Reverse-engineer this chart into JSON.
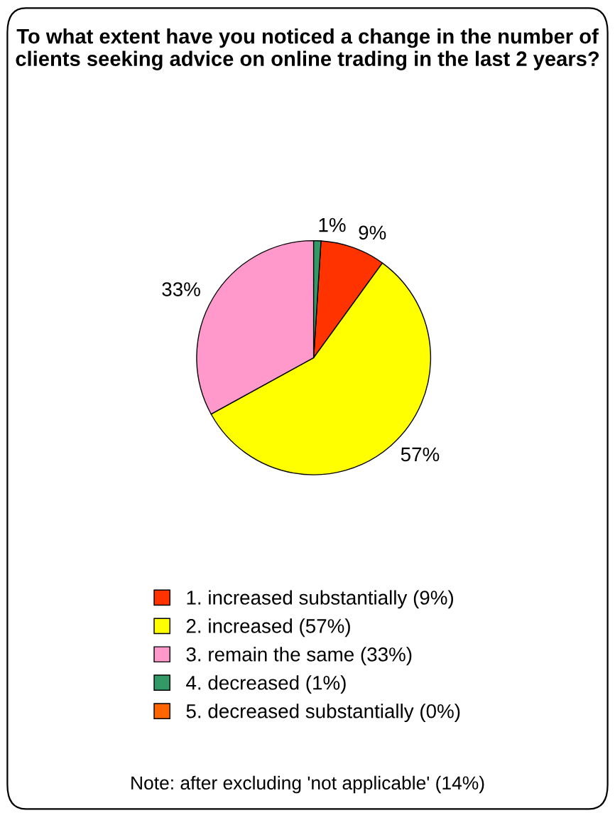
{
  "chart_data": {
    "type": "pie",
    "title": "To what extent have you noticed a change in the number of clients seeking advice on online trading in the last 2 years?",
    "categories": [
      "1. increased substantially (9%)",
      "2. increased (57%)",
      "3. remain the same (33%)",
      "4. decreased (1%)",
      "5. decreased substantially (0%)"
    ],
    "values": [
      9,
      57,
      33,
      1,
      0
    ],
    "colors": [
      "#ff3300",
      "#ffff00",
      "#ff99cc",
      "#339966",
      "#ff6600"
    ],
    "value_labels": [
      "9%",
      "57%",
      "33%",
      "1%",
      null
    ],
    "legend": "bottom",
    "annotations": [
      "Note: after excluding 'not applicable' (14%)"
    ]
  }
}
